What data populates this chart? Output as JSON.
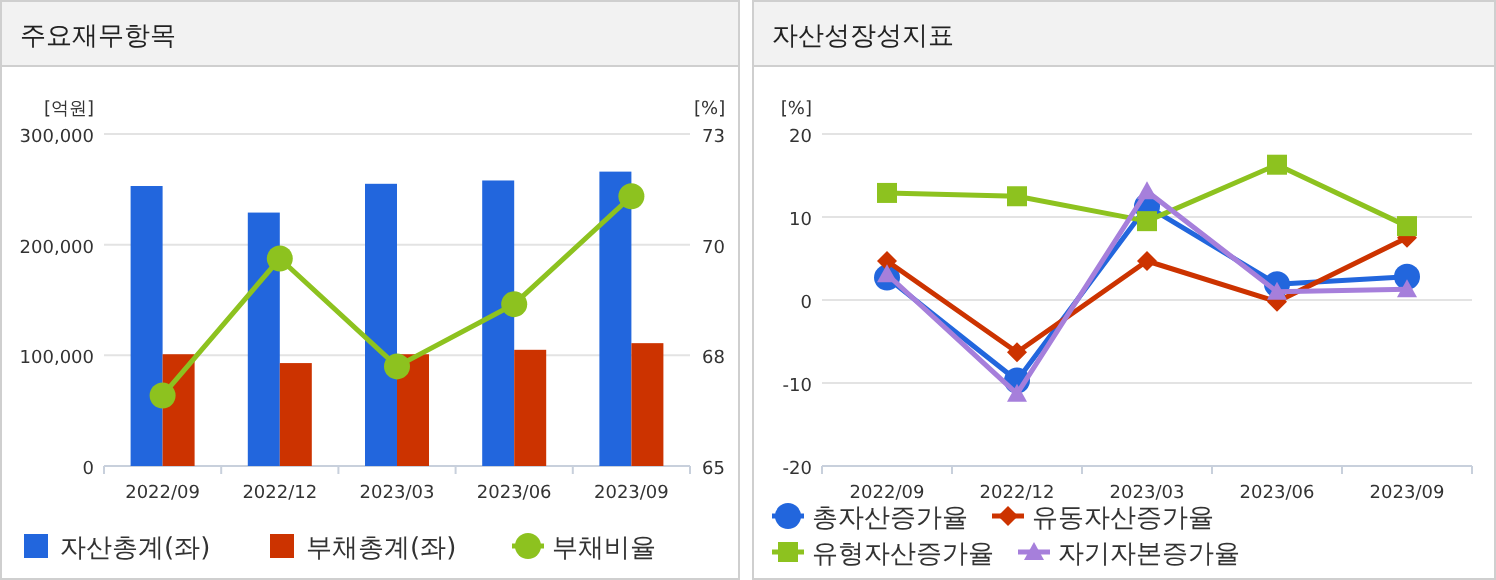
{
  "chart_data": [
    {
      "type": "bar",
      "title": "주요재무항목",
      "ylabel": "[억원]",
      "y2label": "[%]",
      "categories": [
        "2022/09",
        "2022/12",
        "2023/03",
        "2023/06",
        "2023/09"
      ],
      "series": [
        {
          "name": "자산총계(좌)",
          "color": "#2266dd",
          "values": [
            253000,
            229000,
            255000,
            258000,
            266000
          ]
        },
        {
          "name": "부채총계(좌)",
          "color": "#cc3300",
          "values": [
            101000,
            93000,
            101000,
            105000,
            111000
          ]
        },
        {
          "name": "부채비율",
          "type": "line",
          "axis": "y2",
          "marker": "circle",
          "color": "#8dc21f",
          "values": [
            66.7,
            70.0,
            67.4,
            68.9,
            71.5
          ]
        }
      ],
      "ylim": [
        0,
        300000
      ],
      "yticks": [
        {
          "value": 0,
          "label": "0"
        },
        {
          "value": 100000,
          "label": "100,000"
        },
        {
          "value": 200000,
          "label": "200,000"
        },
        {
          "value": 300000,
          "label": "300,000"
        }
      ],
      "y2lim": [
        65,
        73
      ],
      "y2ticks": [
        65,
        {
          "value": 67.667,
          "label": "68"
        },
        {
          "value": 70.333,
          "label": "70"
        },
        73
      ],
      "grid": "y",
      "legend": "bottom"
    },
    {
      "type": "line",
      "title": "자산성장성지표",
      "ylabel": "[%]",
      "categories": [
        "2022/09",
        "2022/12",
        "2023/03",
        "2023/06",
        "2023/09"
      ],
      "series": [
        {
          "name": "총자산증가율",
          "marker": "circle",
          "color": "#2266dd",
          "values": [
            2.7,
            -9.7,
            11.3,
            1.9,
            2.8
          ]
        },
        {
          "name": "유동자산증가율",
          "marker": "diamond",
          "color": "#cc3300",
          "values": [
            4.7,
            -6.3,
            4.7,
            -0.2,
            7.5
          ]
        },
        {
          "name": "유형자산증가율",
          "marker": "square",
          "color": "#8dc21f",
          "values": [
            12.9,
            12.5,
            9.5,
            16.3,
            8.9
          ]
        },
        {
          "name": "자기자본증가율",
          "marker": "triangle",
          "color": "#a67fdb",
          "values": [
            3.1,
            -11.3,
            13.1,
            1.0,
            1.3
          ]
        }
      ],
      "ylim": [
        -20,
        20
      ],
      "yticks": [
        -20,
        -10,
        0,
        10,
        20
      ],
      "grid": "y",
      "legend": "bottom"
    }
  ]
}
